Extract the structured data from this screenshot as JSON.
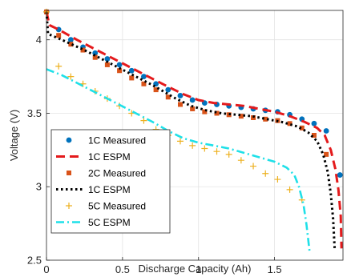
{
  "chart_data": {
    "type": "line",
    "xlabel": "Discharge Capacity (Ah)",
    "ylabel": "Voltage (V)",
    "xlim": [
      0,
      1.95
    ],
    "ylim": [
      2.5,
      4.2
    ],
    "x_ticks": [
      0,
      0.5,
      1,
      1.5
    ],
    "x_tick_labels": [
      "0",
      "0.5",
      "1",
      "1.5"
    ],
    "y_ticks": [
      2.5,
      3,
      3.5,
      4
    ],
    "y_tick_labels": [
      "2.5",
      "3",
      "3.5",
      "4"
    ],
    "grid": true,
    "legend_position": "bottom-left",
    "series": [
      {
        "name": "1C Measured",
        "style": "markers",
        "marker": "circle",
        "color": "#0072BD",
        "points": [
          [
            0,
            4.19
          ],
          [
            0.08,
            4.07
          ],
          [
            0.16,
            4.0
          ],
          [
            0.24,
            3.95
          ],
          [
            0.32,
            3.91
          ],
          [
            0.4,
            3.87
          ],
          [
            0.48,
            3.83
          ],
          [
            0.56,
            3.79
          ],
          [
            0.64,
            3.75
          ],
          [
            0.72,
            3.7
          ],
          [
            0.8,
            3.66
          ],
          [
            0.88,
            3.62
          ],
          [
            0.96,
            3.59
          ],
          [
            1.04,
            3.57
          ],
          [
            1.12,
            3.56
          ],
          [
            1.2,
            3.55
          ],
          [
            1.28,
            3.54
          ],
          [
            1.36,
            3.53
          ],
          [
            1.44,
            3.52
          ],
          [
            1.52,
            3.51
          ],
          [
            1.6,
            3.49
          ],
          [
            1.68,
            3.46
          ],
          [
            1.76,
            3.43
          ],
          [
            1.84,
            3.38
          ],
          [
            1.93,
            3.08
          ]
        ]
      },
      {
        "name": "1C ESPM",
        "style": "dashed",
        "color": "#E41A1C",
        "points": [
          [
            0,
            4.19
          ],
          [
            0.02,
            4.1
          ],
          [
            0.08,
            4.07
          ],
          [
            0.2,
            4.0
          ],
          [
            0.35,
            3.92
          ],
          [
            0.5,
            3.84
          ],
          [
            0.65,
            3.76
          ],
          [
            0.8,
            3.68
          ],
          [
            0.9,
            3.63
          ],
          [
            1.0,
            3.59
          ],
          [
            1.1,
            3.57
          ],
          [
            1.2,
            3.56
          ],
          [
            1.3,
            3.55
          ],
          [
            1.4,
            3.53
          ],
          [
            1.5,
            3.51
          ],
          [
            1.6,
            3.48
          ],
          [
            1.7,
            3.44
          ],
          [
            1.78,
            3.4
          ],
          [
            1.83,
            3.35
          ],
          [
            1.87,
            3.25
          ],
          [
            1.9,
            3.12
          ],
          [
            1.92,
            2.98
          ],
          [
            1.935,
            2.8
          ],
          [
            1.94,
            2.58
          ]
        ]
      },
      {
        "name": "2C Measured",
        "style": "markers",
        "marker": "square",
        "color": "#D95319",
        "points": [
          [
            0,
            4.19
          ],
          [
            0.08,
            4.03
          ],
          [
            0.16,
            3.97
          ],
          [
            0.24,
            3.93
          ],
          [
            0.32,
            3.88
          ],
          [
            0.4,
            3.83
          ],
          [
            0.48,
            3.79
          ],
          [
            0.56,
            3.74
          ],
          [
            0.64,
            3.7
          ],
          [
            0.72,
            3.66
          ],
          [
            0.8,
            3.61
          ],
          [
            0.88,
            3.56
          ],
          [
            0.96,
            3.53
          ],
          [
            1.04,
            3.51
          ],
          [
            1.12,
            3.5
          ],
          [
            1.2,
            3.49
          ],
          [
            1.28,
            3.48
          ],
          [
            1.36,
            3.47
          ],
          [
            1.44,
            3.46
          ],
          [
            1.52,
            3.45
          ],
          [
            1.6,
            3.43
          ],
          [
            1.68,
            3.4
          ],
          [
            1.76,
            3.35
          ],
          [
            1.84,
            3.22
          ]
        ]
      },
      {
        "name": "1C ESPM",
        "style": "dotted",
        "color": "#000000",
        "points": [
          [
            0,
            4.19
          ],
          [
            0.01,
            4.04
          ],
          [
            0.1,
            4.0
          ],
          [
            0.25,
            3.93
          ],
          [
            0.4,
            3.85
          ],
          [
            0.55,
            3.77
          ],
          [
            0.7,
            3.69
          ],
          [
            0.85,
            3.6
          ],
          [
            0.95,
            3.55
          ],
          [
            1.05,
            3.52
          ],
          [
            1.15,
            3.5
          ],
          [
            1.25,
            3.49
          ],
          [
            1.35,
            3.48
          ],
          [
            1.45,
            3.46
          ],
          [
            1.55,
            3.44
          ],
          [
            1.65,
            3.41
          ],
          [
            1.72,
            3.37
          ],
          [
            1.78,
            3.31
          ],
          [
            1.82,
            3.22
          ],
          [
            1.85,
            3.1
          ],
          [
            1.87,
            2.95
          ],
          [
            1.885,
            2.78
          ],
          [
            1.895,
            2.58
          ]
        ]
      },
      {
        "name": "5C Measured",
        "style": "markers",
        "marker": "plus",
        "color": "#EDB120",
        "points": [
          [
            0,
            4.19
          ],
          [
            0.08,
            3.82
          ],
          [
            0.16,
            3.75
          ],
          [
            0.24,
            3.7
          ],
          [
            0.32,
            3.65
          ],
          [
            0.4,
            3.6
          ],
          [
            0.48,
            3.55
          ],
          [
            0.56,
            3.5
          ],
          [
            0.64,
            3.45
          ],
          [
            0.72,
            3.39
          ],
          [
            0.8,
            3.35
          ],
          [
            0.88,
            3.31
          ],
          [
            0.96,
            3.28
          ],
          [
            1.04,
            3.26
          ],
          [
            1.12,
            3.24
          ],
          [
            1.2,
            3.22
          ],
          [
            1.28,
            3.18
          ],
          [
            1.36,
            3.14
          ],
          [
            1.44,
            3.09
          ],
          [
            1.52,
            3.05
          ],
          [
            1.6,
            2.98
          ],
          [
            1.68,
            2.91
          ]
        ]
      },
      {
        "name": "5C ESPM",
        "style": "dashdot",
        "color": "#1FE0E8",
        "points": [
          [
            0,
            3.8
          ],
          [
            0.1,
            3.76
          ],
          [
            0.25,
            3.68
          ],
          [
            0.4,
            3.6
          ],
          [
            0.55,
            3.52
          ],
          [
            0.7,
            3.44
          ],
          [
            0.8,
            3.38
          ],
          [
            0.9,
            3.33
          ],
          [
            1.0,
            3.3
          ],
          [
            1.1,
            3.28
          ],
          [
            1.2,
            3.26
          ],
          [
            1.3,
            3.23
          ],
          [
            1.4,
            3.2
          ],
          [
            1.5,
            3.17
          ],
          [
            1.58,
            3.13
          ],
          [
            1.63,
            3.08
          ],
          [
            1.66,
            3.0
          ],
          [
            1.69,
            2.88
          ],
          [
            1.71,
            2.74
          ],
          [
            1.73,
            2.56
          ]
        ]
      }
    ]
  }
}
